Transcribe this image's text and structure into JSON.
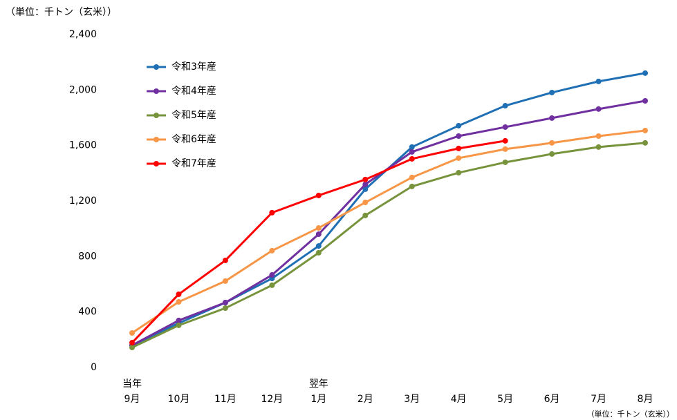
{
  "chart_data": {
    "type": "line",
    "unit_label": "（単位：千トン（玄米））",
    "footnote": "（単位：千トン（玄米））",
    "categories": [
      "9月",
      "10月",
      "11月",
      "12月",
      "1月",
      "2月",
      "3月",
      "4月",
      "5月",
      "6月",
      "7月",
      "8月"
    ],
    "year_labels": [
      "当年",
      null,
      null,
      null,
      "翌年",
      null,
      null,
      null,
      null,
      null,
      null,
      null
    ],
    "series": [
      {
        "name": "令和3年産",
        "color": "#1f6fb5",
        "values": [
          159,
          319,
          468,
          642,
          876,
          1285,
          1589,
          1743,
          1887,
          1982,
          2062,
          2122
        ]
      },
      {
        "name": "令和4年産",
        "color": "#7030a0",
        "values": [
          160,
          339,
          468,
          667,
          961,
          1320,
          1554,
          1668,
          1733,
          1798,
          1863,
          1922
        ]
      },
      {
        "name": "令和5年産",
        "color": "#77933c",
        "values": [
          144,
          304,
          428,
          593,
          827,
          1096,
          1305,
          1404,
          1479,
          1539,
          1589,
          1619
        ]
      },
      {
        "name": "令和6年産",
        "color": "#f79646",
        "values": [
          249,
          473,
          623,
          842,
          1006,
          1190,
          1370,
          1509,
          1574,
          1619,
          1668,
          1708
        ]
      },
      {
        "name": "令和7年産",
        "color": "#ff0000",
        "values": [
          179,
          528,
          772,
          1116,
          1240,
          1355,
          1504,
          1579,
          1634,
          null,
          null,
          null
        ]
      }
    ],
    "ylim": [
      0,
      2400
    ],
    "yticks": [
      0,
      400,
      800,
      {
        "value": 1200,
        "label": "1,200"
      },
      {
        "value": 1600,
        "label": "1,600"
      },
      {
        "value": 2000,
        "label": "2,000"
      },
      {
        "value": 2400,
        "label": "2,400"
      }
    ],
    "legend": "top-left"
  }
}
